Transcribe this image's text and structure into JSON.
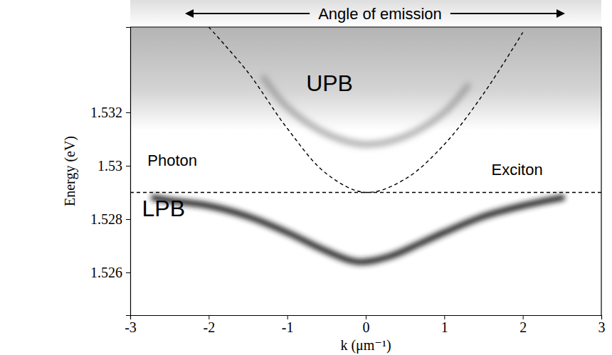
{
  "chart_data": {
    "type": "line",
    "title": "Angle of emission",
    "x_label": "k (μm⁻¹)",
    "y_label": "Energy (eV)",
    "xlim": [
      -3,
      3
    ],
    "ylim": [
      1.5244,
      1.5352
    ],
    "xticks": [
      -3,
      -2,
      -1,
      0,
      1,
      2,
      3
    ],
    "yticks": [
      1.526,
      1.528,
      1.53,
      1.532
    ],
    "grid": false,
    "series": [
      {
        "color": "#1e1e1e",
        "line_style": "solid",
        "x": [
          -2.7,
          -2.5,
          -2.0,
          -1.5,
          -1.0,
          -0.5,
          -0.1,
          0.3,
          0.7,
          1.0,
          1.5,
          2.0,
          2.5
        ],
        "values": [
          1.5288,
          1.5287,
          1.5285,
          1.5281,
          1.5275,
          1.5268,
          1.5264,
          1.5266,
          1.5271,
          1.5275,
          1.5281,
          1.5285,
          1.5288
        ]
      },
      {
        "color": "#8c8c8c",
        "line_style": "solid",
        "x": [
          -1.3,
          -1.0,
          -0.5,
          0.0,
          0.5,
          1.0,
          1.3
        ],
        "values": [
          1.5333,
          1.5322,
          1.5312,
          1.5308,
          1.5311,
          1.532,
          1.533
        ]
      },
      {
        "color": "#000000",
        "line_style": "dashed",
        "x": [
          -2.0,
          -1.5,
          -1.0,
          -0.5,
          0.0,
          0.5,
          1.0,
          1.5,
          2.0
        ],
        "values": [
          1.5352,
          1.5335,
          1.5314,
          1.5297,
          1.529,
          1.5295,
          1.5308,
          1.5327,
          1.535
        ]
      },
      {
        "color": "#000000",
        "line_style": "dashed",
        "x": [
          -3.0,
          3.0
        ],
        "values": [
          1.529,
          1.529
        ]
      }
    ],
    "annotations": [
      {
        "text": "UPB",
        "x": -0.76,
        "y": 1.5328
      },
      {
        "text": "LPB",
        "x": -2.85,
        "y": 1.5281
      },
      {
        "text": "Photon",
        "x": -2.78,
        "y": 1.53
      },
      {
        "text": "Exciton",
        "x": 1.6,
        "y": 1.52965
      }
    ]
  }
}
